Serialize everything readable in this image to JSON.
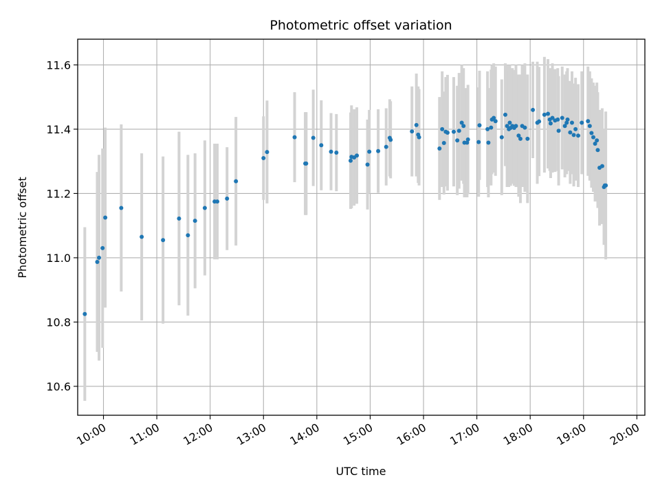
{
  "chart_data": {
    "type": "scatter",
    "title": "Photometric offset variation",
    "xlabel": "UTC time",
    "ylabel": "Photometric offset",
    "xlim": [
      "09:31",
      "20:09"
    ],
    "ylim": [
      10.51,
      11.68
    ],
    "x_tick_labels": [
      "10:00",
      "11:00",
      "12:00",
      "13:00",
      "14:00",
      "15:00",
      "16:00",
      "17:00",
      "18:00",
      "19:00",
      "20:00"
    ],
    "y_tick_labels": [
      "10.6",
      "10.8",
      "11.0",
      "11.2",
      "11.4",
      "11.6"
    ],
    "grid": true,
    "colors": {
      "point": "#1f77b4",
      "errorbar": "#d3d3d3",
      "grid": "#b0b0b0",
      "axes": "#000000"
    },
    "series": [
      {
        "x": [
          "09:39",
          "09:53",
          "09:55",
          "09:59",
          "10:02",
          "10:20",
          "10:43",
          "11:07",
          "11:25",
          "11:35",
          "11:43",
          "11:54",
          "12:05",
          "12:08",
          "12:19",
          "12:29",
          "13:00",
          "13:04",
          "13:35",
          "13:47",
          "13:48",
          "13:56",
          "14:05",
          "14:16",
          "14:22",
          "14:38",
          "14:39",
          "14:42",
          "14:45",
          "14:57",
          "14:59",
          "15:09",
          "15:18",
          "15:22",
          "15:23",
          "15:47",
          "15:52",
          "15:54",
          "15:55",
          "16:18",
          "16:21",
          "16:23",
          "16:25",
          "16:27",
          "16:34",
          "16:38",
          "16:40",
          "16:43",
          "16:45",
          "16:46",
          "16:49",
          "16:50",
          "17:02",
          "17:03",
          "17:12",
          "17:13",
          "17:16",
          "17:17",
          "17:19",
          "17:21",
          "17:28",
          "17:32",
          "17:34",
          "17:36",
          "17:37",
          "17:38",
          "17:40",
          "17:42",
          "17:44",
          "17:47",
          "17:49",
          "17:51",
          "17:54",
          "17:57",
          "18:03",
          "18:08",
          "18:10",
          "18:16",
          "18:20",
          "18:22",
          "18:23",
          "18:25",
          "18:28",
          "18:31",
          "18:32",
          "18:36",
          "18:39",
          "18:41",
          "18:42",
          "18:45",
          "18:47",
          "18:49",
          "18:51",
          "18:54",
          "18:58",
          "19:05",
          "19:07",
          "19:09",
          "19:11",
          "19:13",
          "19:15",
          "19:16",
          "19:18",
          "19:21",
          "19:23",
          "19:24",
          "19:25"
        ],
        "y": [
          10.825,
          10.987,
          11.0,
          11.03,
          11.125,
          11.155,
          11.065,
          11.055,
          11.122,
          11.07,
          11.115,
          11.155,
          11.175,
          11.175,
          11.184,
          11.238,
          11.31,
          11.329,
          11.375,
          11.293,
          11.293,
          11.373,
          11.35,
          11.33,
          11.327,
          11.302,
          11.314,
          11.312,
          11.318,
          11.29,
          11.33,
          11.332,
          11.345,
          11.373,
          11.367,
          11.393,
          11.413,
          11.383,
          11.375,
          11.34,
          11.4,
          11.357,
          11.392,
          11.389,
          11.392,
          11.365,
          11.395,
          11.42,
          11.41,
          11.358,
          11.358,
          11.368,
          11.36,
          11.412,
          11.4,
          11.358,
          11.405,
          11.43,
          11.435,
          11.425,
          11.375,
          11.445,
          11.41,
          11.4,
          11.42,
          11.404,
          11.41,
          11.404,
          11.41,
          11.38,
          11.37,
          11.41,
          11.405,
          11.37,
          11.46,
          11.42,
          11.424,
          11.445,
          11.448,
          11.43,
          11.418,
          11.435,
          11.427,
          11.43,
          11.395,
          11.435,
          11.41,
          11.42,
          11.43,
          11.39,
          11.42,
          11.382,
          11.4,
          11.38,
          11.42,
          11.425,
          11.41,
          11.388,
          11.375,
          11.355,
          11.365,
          11.335,
          11.28,
          11.285,
          11.22,
          11.225,
          11.225
        ],
        "yerr": [
          0.27,
          0.28,
          0.32,
          0.31,
          0.28,
          0.26,
          0.26,
          0.26,
          0.27,
          0.25,
          0.21,
          0.21,
          0.18,
          0.18,
          0.16,
          0.2,
          0.13,
          0.16,
          0.14,
          0.16,
          0.16,
          0.15,
          0.14,
          0.12,
          0.12,
          0.15,
          0.16,
          0.15,
          0.15,
          0.14,
          0.13,
          0.13,
          0.12,
          0.12,
          0.12,
          0.14,
          0.16,
          0.15,
          0.15,
          0.16,
          0.18,
          0.16,
          0.17,
          0.18,
          0.17,
          0.17,
          0.18,
          0.18,
          0.18,
          0.17,
          0.17,
          0.17,
          0.17,
          0.17,
          0.18,
          0.17,
          0.18,
          0.17,
          0.17,
          0.17,
          0.18,
          0.16,
          0.19,
          0.18,
          0.18,
          0.18,
          0.18,
          0.18,
          0.19,
          0.19,
          0.2,
          0.19,
          0.2,
          0.2,
          0.15,
          0.19,
          0.17,
          0.18,
          0.17,
          0.16,
          0.17,
          0.17,
          0.16,
          0.16,
          0.17,
          0.16,
          0.16,
          0.16,
          0.16,
          0.16,
          0.16,
          0.16,
          0.16,
          0.16,
          0.16,
          0.17,
          0.17,
          0.17,
          0.17,
          0.18,
          0.18,
          0.18,
          0.18,
          0.18,
          0.18,
          0.16,
          0.23
        ]
      }
    ]
  }
}
